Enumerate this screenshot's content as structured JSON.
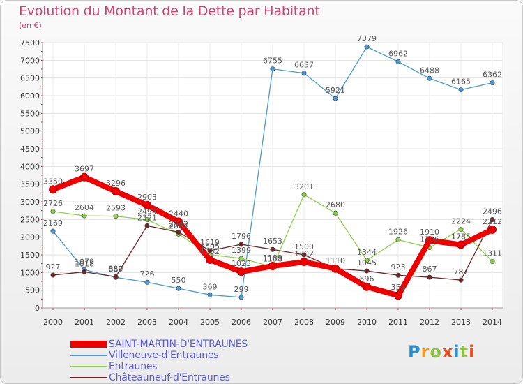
{
  "title": "Evolution du Montant de la Dette par Habitant",
  "unit": "(en €)",
  "logo": {
    "text": "Proxiti"
  },
  "chart_data": {
    "type": "line",
    "title": "Evolution du Montant de la Dette par Habitant",
    "ylabel": "(en €)",
    "ylim": [
      0,
      7500
    ],
    "yticks": [
      0,
      500,
      1000,
      1500,
      2000,
      2500,
      3000,
      3500,
      4000,
      4500,
      5000,
      5500,
      6000,
      6500,
      7000,
      7500
    ],
    "categories": [
      "2000",
      "2001",
      "2002",
      "2003",
      "2004",
      "2005",
      "2006",
      "2007",
      "2008",
      "2009",
      "2010",
      "2011",
      "2012",
      "2013",
      "2014"
    ],
    "grid": true,
    "legend_position": "bottom-left",
    "series": [
      {
        "name": "SAINT-MARTIN-D'ENTRAUNES",
        "color": "#ee0000",
        "values": [
          3350,
          3697,
          3296,
          2903,
          2440,
          1362,
          1023,
          1183,
          1302,
          1110,
          596,
          351,
          1910,
          1785,
          2212
        ]
      },
      {
        "name": "Villeneuve-d'Entraunes",
        "color": "#4a9ad4",
        "values": [
          2169,
          1079,
          862,
          726,
          550,
          369,
          299,
          6755,
          6637,
          5921,
          7379,
          6962,
          6488,
          6165,
          6362
        ]
      },
      {
        "name": "Entraunes",
        "color": "#8fd14f",
        "values": [
          2726,
          2604,
          2593,
          2494,
          2087,
          1505,
          1399,
          1158,
          3201,
          2680,
          1344,
          1926,
          1706,
          2224,
          1311
        ]
      },
      {
        "name": "Châteauneuf-d'Entraunes",
        "color": "#6e2424",
        "values": [
          927,
          1018,
          880,
          2321,
          2142,
          1619,
          1796,
          1653,
          1500,
          1110,
          1045,
          923,
          867,
          787,
          2496
        ]
      }
    ]
  }
}
